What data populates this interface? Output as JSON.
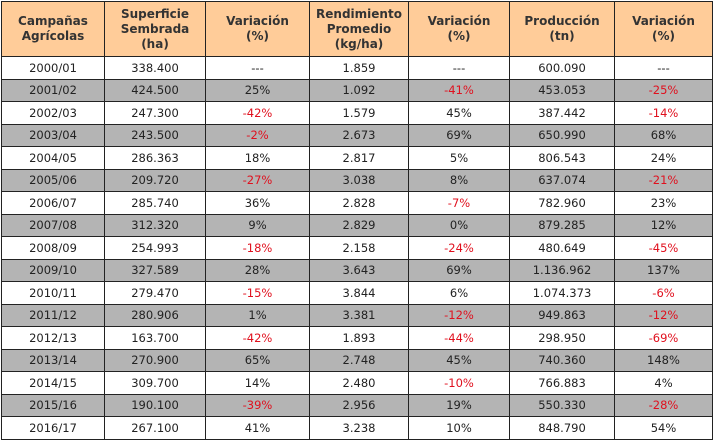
{
  "headers": [
    "Campañas\nAgrícolas",
    "Superficie\nSembrada\n(ha)",
    "Variación\n(%)",
    "Rendimiento\nPromedio\n(kg/ha)",
    "Variación\n(%)",
    "Producción\n(tn)",
    "Variación\n(%)"
  ],
  "rows": [
    [
      "2000/01",
      "338.400",
      "---",
      "1.859",
      "---",
      "600.090",
      "---"
    ],
    [
      "2001/02",
      "424.500",
      "25%",
      "1.092",
      "-41%",
      "453.053",
      "-25%"
    ],
    [
      "2002/03",
      "247.300",
      "-42%",
      "1.579",
      "45%",
      "387.442",
      "-14%"
    ],
    [
      "2003/04",
      "243.500",
      "-2%",
      "2.673",
      "69%",
      "650.990",
      "68%"
    ],
    [
      "2004/05",
      "286.363",
      "18%",
      "2.817",
      "5%",
      "806.543",
      "24%"
    ],
    [
      "2005/06",
      "209.720",
      "-27%",
      "3.038",
      "8%",
      "637.074",
      "-21%"
    ],
    [
      "2006/07",
      "285.740",
      "36%",
      "2.828",
      "-7%",
      "782.960",
      "23%"
    ],
    [
      "2007/08",
      "312.320",
      "9%",
      "2.829",
      "0%",
      "879.285",
      "12%"
    ],
    [
      "2008/09",
      "254.993",
      "-18%",
      "2.158",
      "-24%",
      "480.649",
      "-45%"
    ],
    [
      "2009/10",
      "327.589",
      "28%",
      "3.643",
      "69%",
      "1.136.962",
      "137%"
    ],
    [
      "2010/11",
      "279.470",
      "-15%",
      "3.844",
      "6%",
      "1.074.373",
      "-6%"
    ],
    [
      "2011/12",
      "280.906",
      "1%",
      "3.381",
      "-12%",
      "949.863",
      "-12%"
    ],
    [
      "2012/13",
      "163.700",
      "-42%",
      "1.893",
      "-44%",
      "298.950",
      "-69%"
    ],
    [
      "2013/14",
      "270.900",
      "65%",
      "2.748",
      "45%",
      "740.360",
      "148%"
    ],
    [
      "2014/15",
      "309.700",
      "14%",
      "2.480",
      "-10%",
      "766.883",
      "4%"
    ],
    [
      "2015/16",
      "190.100",
      "-39%",
      "2.956",
      "19%",
      "550.330",
      "-28%"
    ],
    [
      "2016/17",
      "267.100",
      "41%",
      "3.238",
      "10%",
      "848.790",
      "54%"
    ]
  ],
  "colors": {
    "header_bg": "#FFCC99",
    "alt_row_bg": "#B4B4B4",
    "negative": "#E0101E"
  }
}
